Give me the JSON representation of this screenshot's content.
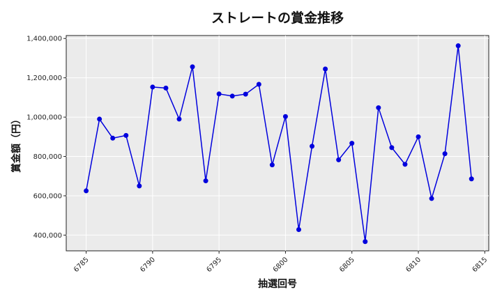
{
  "chart_data": {
    "type": "line",
    "title": "ストレートの賞金推移",
    "xlabel": "抽選回号",
    "ylabel": "賞金額（円）",
    "x_ticks": [
      "6785",
      "6790",
      "6795",
      "6800",
      "6805",
      "6810",
      "6815"
    ],
    "y_ticks": [
      "400,000",
      "600,000",
      "800,000",
      "1,000,000",
      "1,200,000",
      "1,400,000"
    ],
    "xlim": [
      6783.5,
      6815.3
    ],
    "ylim": [
      320000,
      1415000
    ],
    "grid": true,
    "series": [
      {
        "color": "#0000dd",
        "points": [
          [
            6785,
            625000
          ],
          [
            6786,
            990000
          ],
          [
            6787,
            893000
          ],
          [
            6788,
            907000
          ],
          [
            6789,
            650000
          ],
          [
            6790,
            1153000
          ],
          [
            6791,
            1148000
          ],
          [
            6792,
            990000
          ],
          [
            6793,
            1256000
          ],
          [
            6794,
            676000
          ],
          [
            6795,
            1118000
          ],
          [
            6796,
            1107000
          ],
          [
            6797,
            1117000
          ],
          [
            6798,
            1167000
          ],
          [
            6799,
            757000
          ],
          [
            6800,
            1003000
          ],
          [
            6801,
            428000
          ],
          [
            6802,
            852000
          ],
          [
            6803,
            1245000
          ],
          [
            6804,
            783000
          ],
          [
            6805,
            867000
          ],
          [
            6806,
            367000
          ],
          [
            6807,
            1048000
          ],
          [
            6808,
            845000
          ],
          [
            6809,
            760000
          ],
          [
            6810,
            900000
          ],
          [
            6811,
            586000
          ],
          [
            6812,
            814000
          ],
          [
            6813,
            1363000
          ],
          [
            6814,
            686000
          ]
        ]
      }
    ]
  }
}
